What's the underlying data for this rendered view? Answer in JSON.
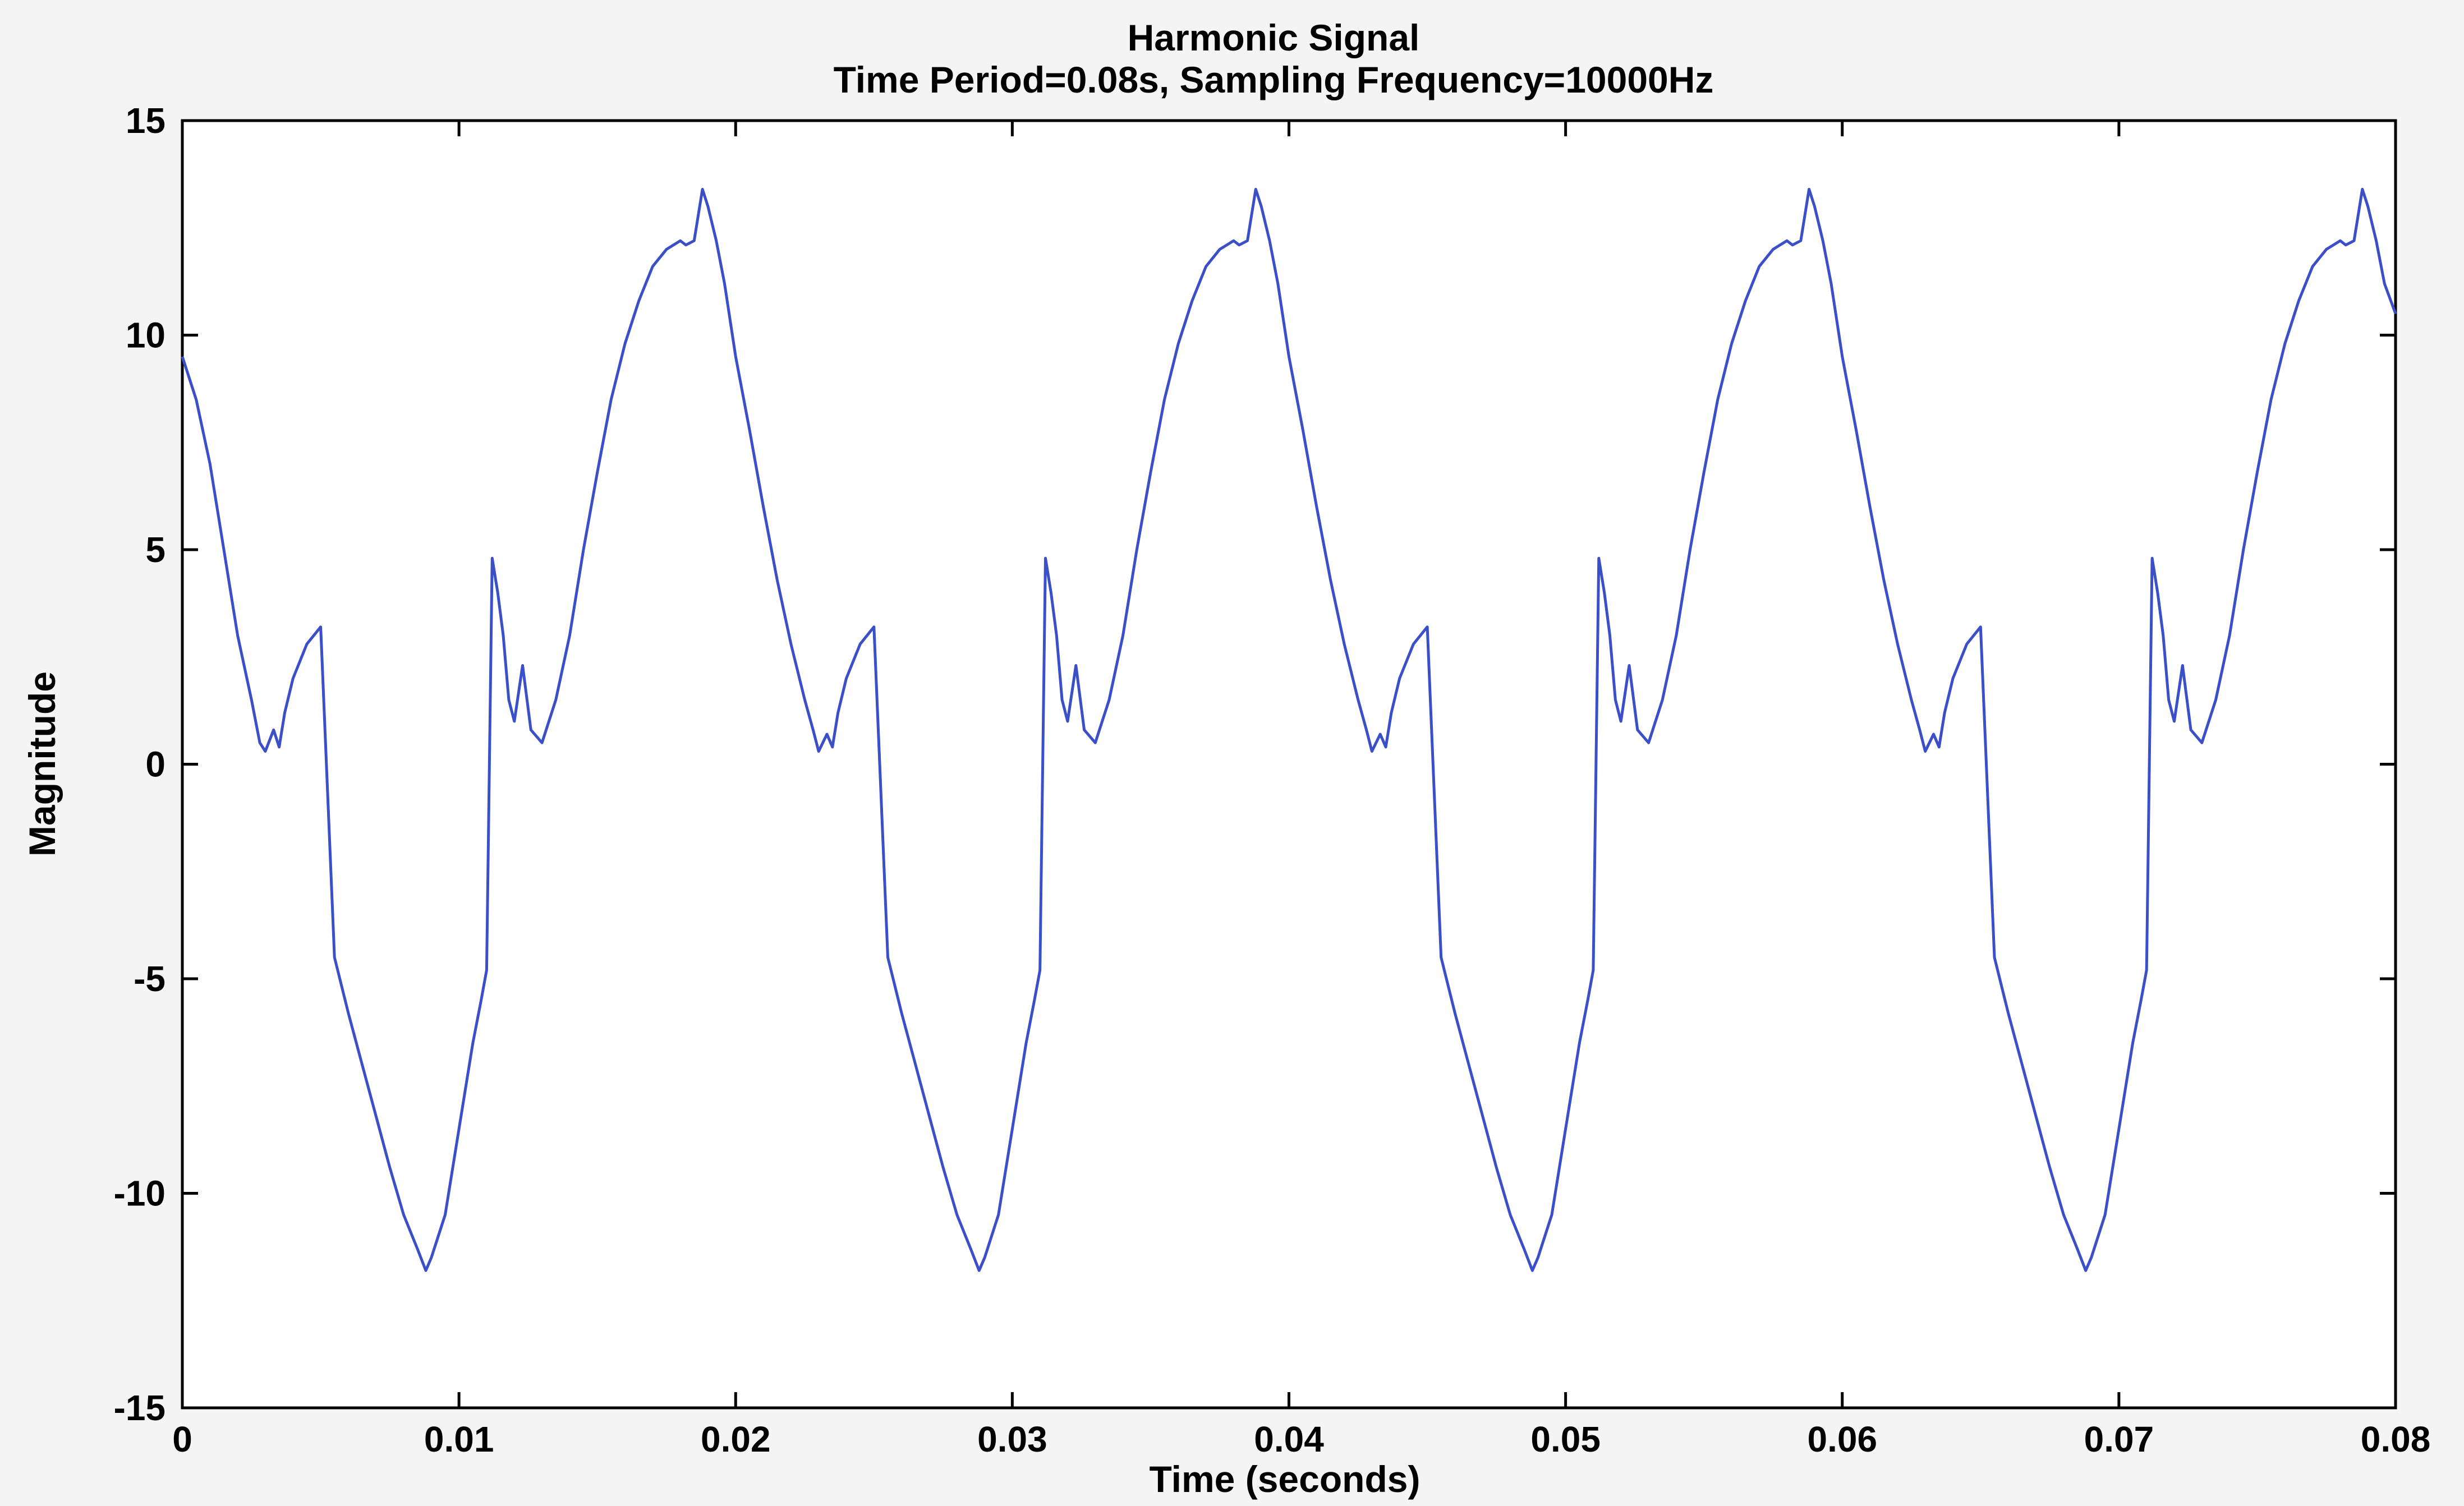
{
  "chart_data": {
    "type": "line",
    "title": "Harmonic Signal",
    "subtitle": "Time Period=0.08s, Sampling Frequency=10000Hz",
    "xlabel": "Time (seconds)",
    "ylabel": "Magnitude",
    "xlim": [
      0,
      0.08
    ],
    "ylim": [
      -15,
      15
    ],
    "xticks": [
      0,
      0.01,
      0.02,
      0.03,
      0.04,
      0.05,
      0.06,
      0.07,
      0.08
    ],
    "xtick_labels": [
      "0",
      "0.01",
      "0.02",
      "0.03",
      "0.04",
      "0.05",
      "0.06",
      "0.07",
      "0.08"
    ],
    "yticks": [
      -15,
      -10,
      -5,
      0,
      5,
      10,
      15
    ],
    "ytick_labels": [
      "-15",
      "-10",
      "-5",
      "0",
      "5",
      "10",
      "15"
    ],
    "grid": false,
    "line_color": "#3a4fc8",
    "series": [
      {
        "x": [
          0,
          0.0005,
          0.001,
          0.0015,
          0.002,
          0.0025,
          0.0028,
          0.003,
          0.0033,
          0.0035,
          0.0037,
          0.004,
          0.0045,
          0.005,
          0.0055,
          0.006,
          0.0065,
          0.007,
          0.0075,
          0.008,
          0.0085,
          0.0088,
          0.009,
          0.0095,
          0.01,
          0.0105,
          0.0108,
          0.011,
          0.0112,
          0.0114,
          0.0116,
          0.0118,
          0.012,
          0.0123,
          0.0126,
          0.013,
          0.0135,
          0.014,
          0.0145,
          0.015,
          0.0155,
          0.016,
          0.0165,
          0.017,
          0.0175,
          0.018,
          0.0182,
          0.0185,
          0.0188,
          0.019,
          0.0193,
          0.0196,
          0.02,
          0.0205,
          0.021,
          0.0215,
          0.022,
          0.0225,
          0.0228,
          0.023,
          0.0233,
          0.0235,
          0.0237,
          0.024,
          0.0245,
          0.025,
          0.0255,
          0.026,
          0.0265,
          0.027,
          0.0275,
          0.028,
          0.0285,
          0.0288,
          0.029,
          0.0295,
          0.03,
          0.0305,
          0.0308,
          0.031,
          0.0312,
          0.0314,
          0.0316,
          0.0318,
          0.032,
          0.0323,
          0.0326,
          0.033,
          0.0335,
          0.034,
          0.0345,
          0.035,
          0.0355,
          0.036,
          0.0365,
          0.037,
          0.0375,
          0.038,
          0.0382,
          0.0385,
          0.0388,
          0.039,
          0.0393,
          0.0396,
          0.04,
          0.0405,
          0.041,
          0.0415,
          0.042,
          0.0425,
          0.0428,
          0.043,
          0.0433,
          0.0435,
          0.0437,
          0.044,
          0.0445,
          0.045,
          0.0455,
          0.046,
          0.0465,
          0.047,
          0.0475,
          0.048,
          0.0485,
          0.0488,
          0.049,
          0.0495,
          0.05,
          0.0505,
          0.0508,
          0.051,
          0.0512,
          0.0514,
          0.0516,
          0.0518,
          0.052,
          0.0523,
          0.0526,
          0.053,
          0.0535,
          0.054,
          0.0545,
          0.055,
          0.0555,
          0.056,
          0.0565,
          0.057,
          0.0575,
          0.058,
          0.0582,
          0.0585,
          0.0588,
          0.059,
          0.0593,
          0.0596,
          0.06,
          0.0605,
          0.061,
          0.0615,
          0.062,
          0.0625,
          0.0628,
          0.063,
          0.0633,
          0.0635,
          0.0637,
          0.064,
          0.0645,
          0.065,
          0.0655,
          0.066,
          0.0665,
          0.067,
          0.0675,
          0.068,
          0.0685,
          0.0688,
          0.069,
          0.0695,
          0.07,
          0.0705,
          0.0708,
          0.071,
          0.0712,
          0.0714,
          0.0716,
          0.0718,
          0.072,
          0.0723,
          0.0726,
          0.073,
          0.0735,
          0.074,
          0.0745,
          0.075,
          0.0755,
          0.076,
          0.0765,
          0.077,
          0.0775,
          0.078,
          0.0782,
          0.0785,
          0.0788,
          0.079,
          0.0793,
          0.0796,
          0.08
        ],
        "y": [
          9.5,
          8.5,
          7.0,
          5.0,
          3.0,
          1.5,
          0.5,
          0.3,
          0.8,
          0.4,
          1.2,
          2.0,
          2.8,
          3.2,
          -4.5,
          -5.8,
          -7.0,
          -8.2,
          -9.4,
          -10.5,
          -11.3,
          -11.8,
          -11.5,
          -10.5,
          -8.5,
          -6.5,
          -5.5,
          -4.8,
          4.8,
          4.0,
          3.0,
          1.5,
          1.0,
          2.3,
          0.8,
          0.5,
          1.5,
          3.0,
          5.0,
          6.8,
          8.5,
          9.8,
          10.8,
          11.6,
          12.0,
          12.2,
          12.1,
          12.2,
          13.4,
          13.0,
          12.2,
          11.2,
          9.5,
          7.8,
          6.0,
          4.3,
          2.8,
          1.5,
          0.8,
          0.3,
          0.7,
          0.4,
          1.2,
          2.0,
          2.8,
          3.2,
          -4.5,
          -5.8,
          -7.0,
          -8.2,
          -9.4,
          -10.5,
          -11.3,
          -11.8,
          -11.5,
          -10.5,
          -8.5,
          -6.5,
          -5.5,
          -4.8,
          4.8,
          4.0,
          3.0,
          1.5,
          1.0,
          2.3,
          0.8,
          0.5,
          1.5,
          3.0,
          5.0,
          6.8,
          8.5,
          9.8,
          10.8,
          11.6,
          12.0,
          12.2,
          12.1,
          12.2,
          13.4,
          13.0,
          12.2,
          11.2,
          9.5,
          7.8,
          6.0,
          4.3,
          2.8,
          1.5,
          0.8,
          0.3,
          0.7,
          0.4,
          1.2,
          2.0,
          2.8,
          3.2,
          -4.5,
          -5.8,
          -7.0,
          -8.2,
          -9.4,
          -10.5,
          -11.3,
          -11.8,
          -11.5,
          -10.5,
          -8.5,
          -6.5,
          -5.5,
          -4.8,
          4.8,
          4.0,
          3.0,
          1.5,
          1.0,
          2.3,
          0.8,
          0.5,
          1.5,
          3.0,
          5.0,
          6.8,
          8.5,
          9.8,
          10.8,
          11.6,
          12.0,
          12.2,
          12.1,
          12.2,
          13.4,
          13.0,
          12.2,
          11.2,
          9.5,
          7.8,
          6.0,
          4.3,
          2.8,
          1.5,
          0.8,
          0.3,
          0.7,
          0.4,
          1.2,
          2.0,
          2.8,
          3.2,
          -4.5,
          -5.8,
          -7.0,
          -8.2,
          -9.4,
          -10.5,
          -11.3,
          -11.8,
          -11.5,
          -10.5,
          -8.5,
          -6.5,
          -5.5,
          -4.8,
          4.8,
          4.0,
          3.0,
          1.5,
          1.0,
          2.3,
          0.8,
          0.5,
          1.5,
          3.0,
          5.0,
          6.8,
          8.5,
          9.8,
          10.8,
          11.6,
          12.0,
          12.2,
          12.1,
          12.2,
          13.4,
          13.0,
          12.2,
          11.2,
          10.5
        ]
      }
    ]
  }
}
